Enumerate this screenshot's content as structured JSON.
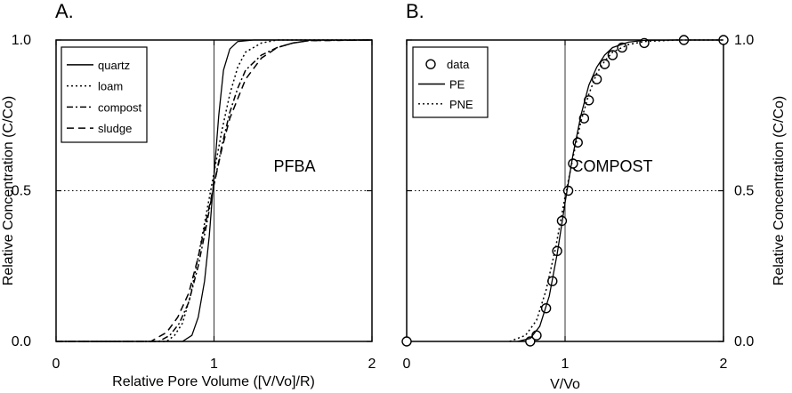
{
  "chart_data": [
    {
      "panel_letter": "A.",
      "type": "line",
      "annotation": "PFBA",
      "xlabel": "Relative Pore Volume ([V/Vo]/R)",
      "ylabel": "Relative Concentration (C/Co)",
      "xlim": [
        0,
        2
      ],
      "ylim": [
        0,
        1
      ],
      "xticks": [
        "0",
        "1",
        "2"
      ],
      "yticks": [
        "0.0",
        "0.5",
        "1.0"
      ],
      "legend_position": "top-left",
      "reference_lines": {
        "x": 1,
        "y": 0.5
      },
      "series": [
        {
          "name": "quartz",
          "style": "solid",
          "x": [
            0,
            0.8,
            0.86,
            0.9,
            0.94,
            0.97,
            1.0,
            1.03,
            1.06,
            1.1,
            1.15,
            1.25,
            1.4,
            2.0
          ],
          "y": [
            0,
            0,
            0.02,
            0.08,
            0.2,
            0.35,
            0.55,
            0.75,
            0.9,
            0.97,
            0.995,
            1,
            1,
            1
          ]
        },
        {
          "name": "loam",
          "style": "dotted",
          "x": [
            0,
            0.7,
            0.75,
            0.8,
            0.85,
            0.9,
            0.95,
            1.0,
            1.05,
            1.1,
            1.15,
            1.2,
            1.3,
            1.4,
            2.0
          ],
          "y": [
            0,
            0,
            0.02,
            0.06,
            0.15,
            0.28,
            0.42,
            0.56,
            0.7,
            0.82,
            0.91,
            0.96,
            0.99,
            1,
            1
          ]
        },
        {
          "name": "compost",
          "style": "dash-dot",
          "x": [
            0,
            0.65,
            0.72,
            0.78,
            0.84,
            0.9,
            0.95,
            1.0,
            1.05,
            1.1,
            1.15,
            1.2,
            1.3,
            1.4,
            1.5,
            1.6,
            2.0
          ],
          "y": [
            0,
            0,
            0.02,
            0.06,
            0.13,
            0.25,
            0.38,
            0.52,
            0.65,
            0.76,
            0.84,
            0.9,
            0.95,
            0.975,
            0.99,
            0.998,
            1
          ]
        },
        {
          "name": "sludge",
          "style": "dashed",
          "x": [
            0,
            0.6,
            0.7,
            0.77,
            0.84,
            0.9,
            0.95,
            1.0,
            1.05,
            1.1,
            1.2,
            1.3,
            1.4,
            1.5,
            1.6,
            2.0
          ],
          "y": [
            0,
            0,
            0.03,
            0.08,
            0.16,
            0.28,
            0.4,
            0.52,
            0.64,
            0.74,
            0.87,
            0.94,
            0.975,
            0.99,
            0.998,
            1
          ]
        }
      ]
    },
    {
      "panel_letter": "B.",
      "type": "line",
      "annotation": "COMPOST",
      "xlabel": "V/Vo",
      "ylabel": "Relative Concentration (C/Co)",
      "xlim": [
        0,
        2
      ],
      "ylim": [
        0,
        1
      ],
      "xticks": [
        "0",
        "1",
        "2"
      ],
      "yticks": [
        "0.0",
        "0.5",
        "1.0"
      ],
      "legend_position": "top-left",
      "reference_lines": {
        "x": 1,
        "y": 0.5
      },
      "series": [
        {
          "name": "data",
          "style": "circle-markers",
          "x": [
            0,
            0.78,
            0.82,
            0.88,
            0.92,
            0.95,
            0.98,
            1.02,
            1.05,
            1.08,
            1.12,
            1.15,
            1.2,
            1.25,
            1.3,
            1.36,
            1.5,
            1.75,
            2.0
          ],
          "y": [
            0,
            0,
            0.02,
            0.11,
            0.2,
            0.3,
            0.4,
            0.5,
            0.59,
            0.66,
            0.74,
            0.8,
            0.87,
            0.92,
            0.95,
            0.975,
            0.99,
            1,
            1
          ]
        },
        {
          "name": "PE",
          "style": "solid",
          "x": [
            0.7,
            0.78,
            0.84,
            0.9,
            0.95,
            1.0,
            1.05,
            1.1,
            1.15,
            1.2,
            1.25,
            1.3,
            1.4,
            1.5,
            1.7,
            2.0
          ],
          "y": [
            0,
            0.01,
            0.05,
            0.15,
            0.29,
            0.46,
            0.62,
            0.75,
            0.85,
            0.91,
            0.95,
            0.975,
            0.993,
            0.999,
            1,
            1
          ]
        },
        {
          "name": "PNE",
          "style": "dotted",
          "x": [
            0.65,
            0.75,
            0.82,
            0.88,
            0.94,
            1.0,
            1.05,
            1.1,
            1.15,
            1.2,
            1.25,
            1.3,
            1.4,
            1.5,
            1.7,
            2.0
          ],
          "y": [
            0,
            0.02,
            0.07,
            0.17,
            0.31,
            0.48,
            0.61,
            0.73,
            0.82,
            0.89,
            0.93,
            0.96,
            0.985,
            0.995,
            1,
            1
          ]
        }
      ]
    }
  ]
}
